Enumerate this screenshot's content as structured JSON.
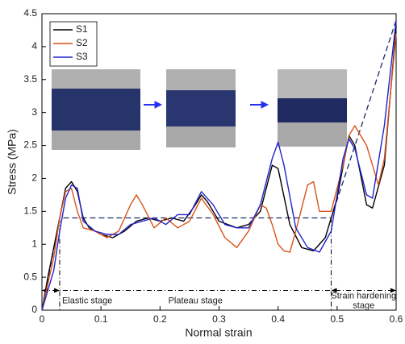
{
  "chart_data": {
    "type": "line",
    "x_label": "Normal strain",
    "y_label": "Stress (MPa)",
    "xlim": [
      0,
      0.6
    ],
    "ylim": [
      0,
      4.5
    ],
    "xticks": [
      0,
      0.1,
      0.2,
      0.3,
      0.4,
      0.5,
      0.6
    ],
    "yticks": [
      0,
      0.5,
      1,
      1.5,
      2,
      2.5,
      3,
      3.5,
      4,
      4.5
    ],
    "grid": false,
    "legend": "upper left",
    "series": [
      {
        "name": "S1",
        "color": "#000000",
        "x": [
          0,
          0.01,
          0.03,
          0.04,
          0.05,
          0.06,
          0.07,
          0.08,
          0.1,
          0.12,
          0.14,
          0.16,
          0.18,
          0.2,
          0.22,
          0.24,
          0.26,
          0.27,
          0.28,
          0.3,
          0.33,
          0.35,
          0.37,
          0.39,
          0.4,
          0.42,
          0.44,
          0.46,
          0.48,
          0.5,
          0.52,
          0.53,
          0.55,
          0.56,
          0.58,
          0.6
        ],
        "values": [
          0,
          0.5,
          1.4,
          1.85,
          1.95,
          1.8,
          1.4,
          1.25,
          1.15,
          1.1,
          1.2,
          1.35,
          1.4,
          1.35,
          1.4,
          1.35,
          1.6,
          1.75,
          1.65,
          1.35,
          1.25,
          1.3,
          1.5,
          2.2,
          2.15,
          1.3,
          0.95,
          0.9,
          1.1,
          1.7,
          2.65,
          2.5,
          1.6,
          1.55,
          2.2,
          4.3
        ]
      },
      {
        "name": "S2",
        "color": "#d95319",
        "x": [
          0,
          0.02,
          0.03,
          0.04,
          0.05,
          0.06,
          0.07,
          0.09,
          0.11,
          0.13,
          0.15,
          0.16,
          0.17,
          0.19,
          0.21,
          0.23,
          0.25,
          0.27,
          0.29,
          0.31,
          0.33,
          0.35,
          0.37,
          0.38,
          0.39,
          0.4,
          0.41,
          0.42,
          0.43,
          0.45,
          0.46,
          0.47,
          0.49,
          0.51,
          0.52,
          0.53,
          0.55,
          0.57,
          0.58,
          0.6
        ],
        "values": [
          0,
          0.8,
          1.4,
          1.8,
          1.85,
          1.5,
          1.25,
          1.2,
          1.1,
          1.2,
          1.6,
          1.75,
          1.6,
          1.25,
          1.4,
          1.25,
          1.35,
          1.7,
          1.45,
          1.1,
          0.95,
          1.2,
          1.6,
          1.55,
          1.3,
          1.0,
          0.9,
          0.88,
          1.2,
          1.9,
          1.95,
          1.5,
          1.5,
          2.2,
          2.65,
          2.8,
          2.5,
          1.9,
          2.3,
          4.2
        ]
      },
      {
        "name": "S3",
        "color": "#2222cc",
        "x": [
          0,
          0.02,
          0.03,
          0.04,
          0.05,
          0.06,
          0.07,
          0.09,
          0.11,
          0.13,
          0.15,
          0.17,
          0.19,
          0.21,
          0.23,
          0.25,
          0.27,
          0.29,
          0.31,
          0.33,
          0.35,
          0.37,
          0.39,
          0.4,
          0.41,
          0.43,
          0.45,
          0.47,
          0.49,
          0.51,
          0.52,
          0.53,
          0.55,
          0.56,
          0.58,
          0.6
        ],
        "values": [
          0,
          0.6,
          1.2,
          1.7,
          1.9,
          1.85,
          1.35,
          1.2,
          1.15,
          1.15,
          1.3,
          1.35,
          1.4,
          1.3,
          1.45,
          1.45,
          1.8,
          1.6,
          1.3,
          1.25,
          1.25,
          1.6,
          2.3,
          2.55,
          2.2,
          1.25,
          0.95,
          0.88,
          1.2,
          2.3,
          2.6,
          2.45,
          1.75,
          1.7,
          2.8,
          4.4
        ]
      }
    ],
    "model_line": {
      "x": [
        0,
        0.03,
        0.49,
        0.6
      ],
      "values": [
        0,
        1.4,
        1.4,
        4.4
      ]
    },
    "stage_boundaries": [
      0.03,
      0.49
    ],
    "stage_arrow_y": 0.3,
    "annotations": [
      "Elastic stage",
      "Plateau stage",
      "Strain hardening",
      "stage"
    ]
  }
}
